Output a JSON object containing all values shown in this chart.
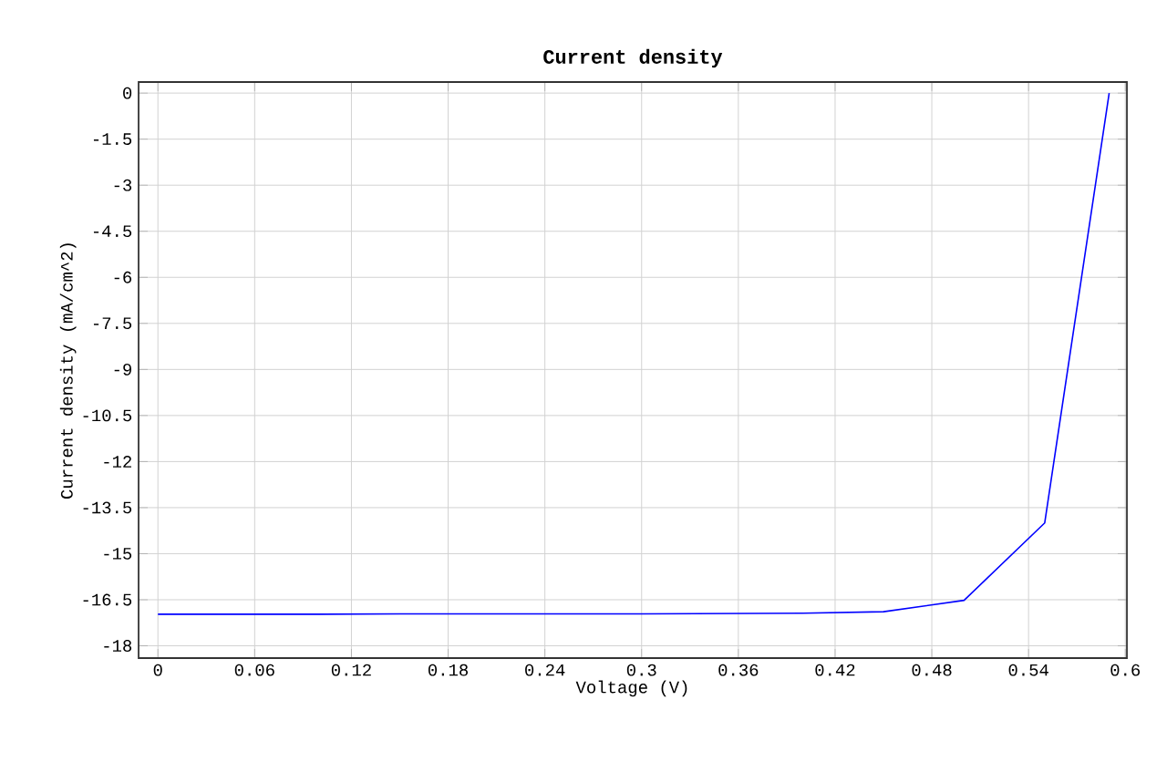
{
  "chart_data": {
    "type": "line",
    "title": "Current density",
    "xlabel": "Voltage (V)",
    "ylabel": "Current density (mA/cm^2)",
    "x": [
      0,
      0.05,
      0.1,
      0.15,
      0.2,
      0.25,
      0.3,
      0.35,
      0.4,
      0.45,
      0.5,
      0.55,
      0.59
    ],
    "series": [
      {
        "color": "#0000ff",
        "values": [
          -16.97,
          -16.97,
          -16.97,
          -16.96,
          -16.96,
          -16.96,
          -16.96,
          -16.95,
          -16.94,
          -16.89,
          -16.52,
          -14,
          0
        ]
      }
    ],
    "xlim": [
      -0.012,
      0.601
    ],
    "ylim": [
      -18.4,
      0.36
    ],
    "xticks": [
      0,
      0.06,
      0.12,
      0.18,
      0.24,
      0.3,
      0.36,
      0.42,
      0.48,
      0.54,
      0.6
    ],
    "yticks": [
      0,
      -1.5,
      -3,
      -4.5,
      -6,
      -7.5,
      -9,
      -10.5,
      -12,
      -13.5,
      -15,
      -16.5,
      -18
    ],
    "grid": true,
    "marker": "none",
    "line_style": "solid"
  }
}
